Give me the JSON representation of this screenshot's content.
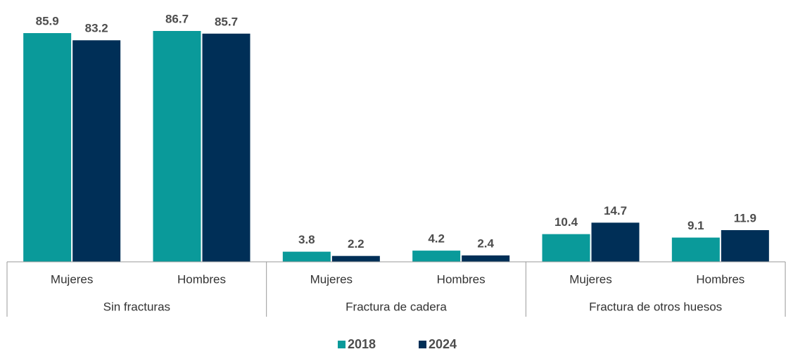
{
  "chart_data": {
    "type": "bar",
    "categories": [
      "Mujeres",
      "Hombres",
      "Mujeres",
      "Hombres",
      "Mujeres",
      "Hombres"
    ],
    "groups": [
      "Sin fracturas",
      "Fractura de cadera",
      "Fractura de otros huesos"
    ],
    "series": [
      {
        "name": "2018",
        "color": "#0a9a9a",
        "values": [
          85.9,
          86.7,
          3.8,
          4.2,
          10.4,
          9.1
        ]
      },
      {
        "name": "2024",
        "color": "#002f57",
        "values": [
          83.2,
          85.7,
          2.2,
          2.4,
          14.7,
          11.9
        ]
      }
    ],
    "legend": "bottom"
  }
}
